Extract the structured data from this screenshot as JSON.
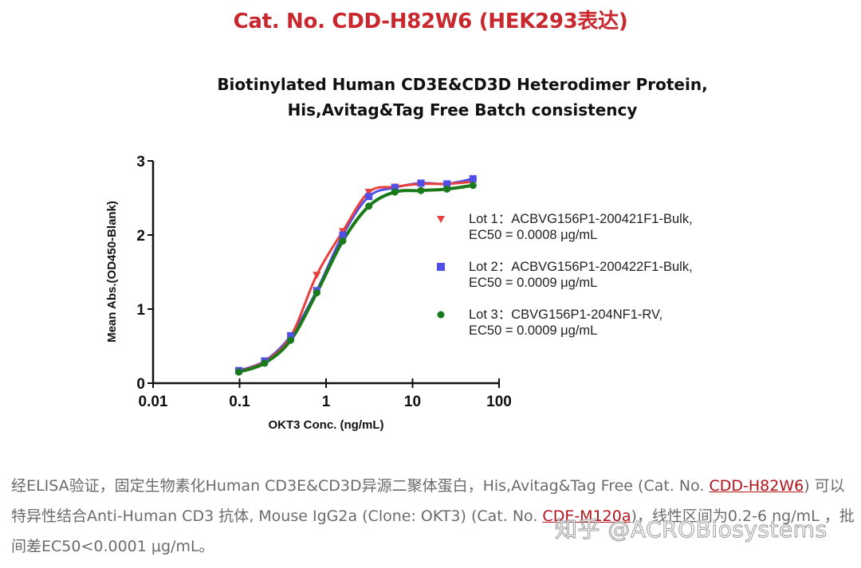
{
  "header": {
    "cat_title": "Cat. No. CDD-H82W6 (HEK293表达)"
  },
  "chart_data": {
    "type": "scatter",
    "title": "Biotinylated Human CD3E&CD3D Heterodimer Protein, His,Avitag&Tag Free Batch consistency",
    "title_line1": "Biotinylated Human CD3E&CD3D Heterodimer Protein,",
    "title_line2": "His,Avitag&Tag Free Batch consistency",
    "xlabel": "OKT3 Conc. (ng/mL)",
    "ylabel": "Mean Abs.(OD450-Blank)",
    "xscale": "log",
    "xlim": [
      0.01,
      100
    ],
    "ylim": [
      0,
      3
    ],
    "x_ticks": [
      "0.01",
      "0.1",
      "1",
      "10",
      "100"
    ],
    "y_ticks": [
      "0",
      "1",
      "2",
      "3"
    ],
    "grid": false,
    "legend_position": "right",
    "fit": "4-parameter logistic curve per series",
    "x": [
      0.098,
      0.195,
      0.39,
      0.78,
      1.56,
      3.125,
      6.25,
      12.5,
      25,
      50
    ],
    "series": [
      {
        "name": "Lot 1",
        "lot": "ACBVG156P1-200421F1-Bulk,",
        "ec50": "EC50 = 0.0008 μg/mL",
        "marker": "triangle-down",
        "color": "#e8403c",
        "values": [
          0.16,
          0.29,
          0.63,
          1.46,
          2.05,
          2.58,
          2.65,
          2.69,
          2.69,
          2.72
        ]
      },
      {
        "name": "Lot 2",
        "lot": "ACBVG156P1-200422F1-Bulk,",
        "ec50": "EC50 = 0.0009 μg/mL",
        "marker": "square",
        "color": "#5050e8",
        "values": [
          0.17,
          0.3,
          0.64,
          1.25,
          2.0,
          2.52,
          2.64,
          2.7,
          2.69,
          2.76
        ]
      },
      {
        "name": "Lot 3",
        "lot": "CBVG156P1-204NF1-RV,",
        "ec50": "EC50 = 0.0009 μg/mL",
        "marker": "circle",
        "color": "#1a7a1a",
        "values": [
          0.15,
          0.27,
          0.58,
          1.22,
          1.92,
          2.39,
          2.58,
          2.6,
          2.62,
          2.67
        ]
      }
    ]
  },
  "legend": {
    "items": [
      {
        "line1": "Lot 1：ACBVG156P1-200421F1-Bulk,",
        "line2": "EC50 = 0.0008 μg/mL"
      },
      {
        "line1": "Lot 2：ACBVG156P1-200422F1-Bulk,",
        "line2": "EC50 = 0.0009 μg/mL"
      },
      {
        "line1": "Lot 3：CBVG156P1-204NF1-RV,",
        "line2": "EC50 = 0.0009 μg/mL"
      }
    ]
  },
  "caption": {
    "part1": "经ELISA验证，固定生物素化Human  CD3E&CD3D异源二聚体蛋白，His,Avitag&Tag  Free  (Cat.  No. ",
    "link1": "CDD-H82W6",
    "part2": ") 可以特异性结合Anti-Human CD3 抗体, Mouse IgG2a (Clone: OKT3) (Cat. No. ",
    "link2": "CDE-M120a",
    "part3": ")，线性区间为0.2-6 ng/mL ，批间差EC50<0.0001 μg/mL。"
  },
  "watermark": "知乎 @ACROBiosystems"
}
